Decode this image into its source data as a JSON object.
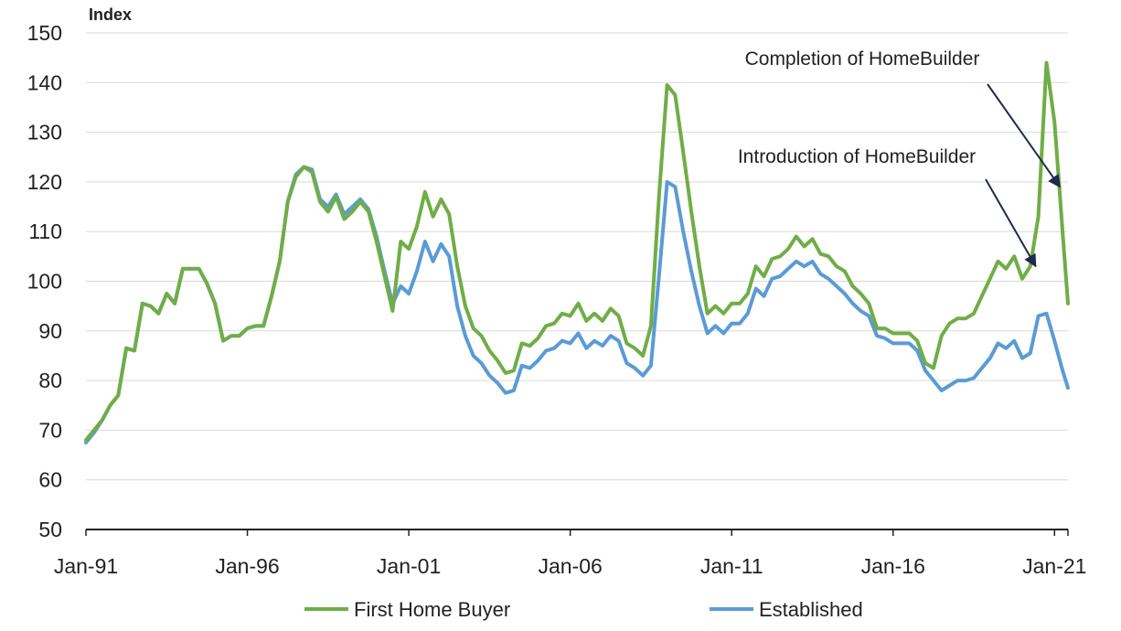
{
  "chart_data": {
    "type": "line",
    "ylabel": "Index",
    "ylim": [
      50,
      150
    ],
    "y_ticks": [
      50,
      60,
      70,
      80,
      90,
      100,
      110,
      120,
      130,
      140,
      150
    ],
    "x_tick_labels": [
      "Jan-91",
      "Jan-96",
      "Jan-01",
      "Jan-06",
      "Jan-11",
      "Jan-16",
      "Jan-21"
    ],
    "x_start": "1991-01",
    "x_end": "2021-06",
    "grid": true,
    "legend_position": "bottom",
    "series": [
      {
        "name": "First Home Buyer",
        "color": "#70ad47",
        "points": [
          [
            "1991-01",
            68
          ],
          [
            "1991-04",
            70
          ],
          [
            "1991-07",
            72
          ],
          [
            "1991-10",
            75
          ],
          [
            "1992-01",
            77
          ],
          [
            "1992-04",
            86.5
          ],
          [
            "1992-07",
            86
          ],
          [
            "1992-10",
            95.5
          ],
          [
            "1993-01",
            95
          ],
          [
            "1993-04",
            93.5
          ],
          [
            "1993-07",
            97.5
          ],
          [
            "1993-10",
            95.5
          ],
          [
            "1994-01",
            102.5
          ],
          [
            "1994-04",
            102.5
          ],
          [
            "1994-07",
            102.5
          ],
          [
            "1994-10",
            99.5
          ],
          [
            "1995-01",
            95.5
          ],
          [
            "1995-04",
            88
          ],
          [
            "1995-07",
            89
          ],
          [
            "1995-10",
            89
          ],
          [
            "1996-01",
            90.5
          ],
          [
            "1996-04",
            91
          ],
          [
            "1996-07",
            91
          ],
          [
            "1996-10",
            97
          ],
          [
            "1997-01",
            104
          ],
          [
            "1997-04",
            116
          ],
          [
            "1997-07",
            121
          ],
          [
            "1997-10",
            123
          ],
          [
            "1998-01",
            122
          ],
          [
            "1998-04",
            116
          ],
          [
            "1998-07",
            114
          ],
          [
            "1998-10",
            117
          ],
          [
            "1999-01",
            112.5
          ],
          [
            "1999-04",
            114
          ],
          [
            "1999-07",
            116
          ],
          [
            "1999-10",
            114
          ],
          [
            "2000-01",
            108
          ],
          [
            "2000-04",
            101
          ],
          [
            "2000-07",
            94
          ],
          [
            "2000-10",
            108
          ],
          [
            "2001-01",
            106.5
          ],
          [
            "2001-04",
            111
          ],
          [
            "2001-07",
            118
          ],
          [
            "2001-10",
            113
          ],
          [
            "2002-01",
            116.5
          ],
          [
            "2002-04",
            113.5
          ],
          [
            "2002-07",
            103
          ],
          [
            "2002-10",
            95
          ],
          [
            "2003-01",
            90.5
          ],
          [
            "2003-04",
            89
          ],
          [
            "2003-07",
            86
          ],
          [
            "2003-10",
            84
          ],
          [
            "2004-01",
            81.5
          ],
          [
            "2004-04",
            82
          ],
          [
            "2004-07",
            87.5
          ],
          [
            "2004-10",
            87
          ],
          [
            "2005-01",
            88.5
          ],
          [
            "2005-04",
            91
          ],
          [
            "2005-07",
            91.5
          ],
          [
            "2005-10",
            93.5
          ],
          [
            "2006-01",
            93
          ],
          [
            "2006-04",
            95.5
          ],
          [
            "2006-07",
            92
          ],
          [
            "2006-10",
            93.5
          ],
          [
            "2007-01",
            92
          ],
          [
            "2007-04",
            94.5
          ],
          [
            "2007-07",
            93
          ],
          [
            "2007-10",
            87.5
          ],
          [
            "2008-01",
            86.5
          ],
          [
            "2008-04",
            85
          ],
          [
            "2008-07",
            91
          ],
          [
            "2008-10",
            117
          ],
          [
            "2009-01",
            139.5
          ],
          [
            "2009-04",
            137.5
          ],
          [
            "2009-07",
            126
          ],
          [
            "2009-10",
            114
          ],
          [
            "2010-01",
            103
          ],
          [
            "2010-04",
            93.5
          ],
          [
            "2010-07",
            95
          ],
          [
            "2010-10",
            93.5
          ],
          [
            "2011-01",
            95.5
          ],
          [
            "2011-04",
            95.5
          ],
          [
            "2011-07",
            97.5
          ],
          [
            "2011-10",
            103
          ],
          [
            "2012-01",
            101
          ],
          [
            "2012-04",
            104.5
          ],
          [
            "2012-07",
            105
          ],
          [
            "2012-10",
            106.5
          ],
          [
            "2013-01",
            109
          ],
          [
            "2013-04",
            107
          ],
          [
            "2013-07",
            108.5
          ],
          [
            "2013-10",
            105.5
          ],
          [
            "2014-01",
            105
          ],
          [
            "2014-04",
            103
          ],
          [
            "2014-07",
            102
          ],
          [
            "2014-10",
            99
          ],
          [
            "2015-01",
            97.5
          ],
          [
            "2015-04",
            95.5
          ],
          [
            "2015-07",
            90.5
          ],
          [
            "2015-10",
            90.5
          ],
          [
            "2016-01",
            89.5
          ],
          [
            "2016-04",
            89.5
          ],
          [
            "2016-07",
            89.5
          ],
          [
            "2016-10",
            88
          ],
          [
            "2017-01",
            83.5
          ],
          [
            "2017-04",
            82.5
          ],
          [
            "2017-07",
            89
          ],
          [
            "2017-10",
            91.5
          ],
          [
            "2018-01",
            92.5
          ],
          [
            "2018-04",
            92.5
          ],
          [
            "2018-07",
            93.5
          ],
          [
            "2018-10",
            97
          ],
          [
            "2019-01",
            100.5
          ],
          [
            "2019-04",
            104
          ],
          [
            "2019-07",
            102.5
          ],
          [
            "2019-10",
            105
          ],
          [
            "2020-01",
            100.5
          ],
          [
            "2020-04",
            103
          ],
          [
            "2020-07",
            113
          ],
          [
            "2020-10",
            144
          ],
          [
            "2021-01",
            132
          ],
          [
            "2021-04",
            110
          ],
          [
            "2021-06",
            95.5
          ]
        ]
      },
      {
        "name": "Established",
        "color": "#5b9bd5",
        "points": [
          [
            "1991-01",
            67.5
          ],
          [
            "1991-04",
            69.5
          ],
          [
            "1991-07",
            72
          ],
          [
            "1991-10",
            75
          ],
          [
            "1992-01",
            77
          ],
          [
            "1992-04",
            86.5
          ],
          [
            "1992-07",
            86
          ],
          [
            "1992-10",
            95.5
          ],
          [
            "1993-01",
            95
          ],
          [
            "1993-04",
            93.5
          ],
          [
            "1993-07",
            97.5
          ],
          [
            "1993-10",
            95.5
          ],
          [
            "1994-01",
            102.5
          ],
          [
            "1994-04",
            102.5
          ],
          [
            "1994-07",
            102.5
          ],
          [
            "1994-10",
            99.5
          ],
          [
            "1995-01",
            95.5
          ],
          [
            "1995-04",
            88
          ],
          [
            "1995-07",
            89
          ],
          [
            "1995-10",
            89
          ],
          [
            "1996-01",
            90.5
          ],
          [
            "1996-04",
            91
          ],
          [
            "1996-07",
            91
          ],
          [
            "1996-10",
            97
          ],
          [
            "1997-01",
            104
          ],
          [
            "1997-04",
            116
          ],
          [
            "1997-07",
            121.5
          ],
          [
            "1997-10",
            123
          ],
          [
            "1998-01",
            122.5
          ],
          [
            "1998-04",
            116.5
          ],
          [
            "1998-07",
            115
          ],
          [
            "1998-10",
            117.5
          ],
          [
            "1999-01",
            113.5
          ],
          [
            "1999-04",
            115
          ],
          [
            "1999-07",
            116.5
          ],
          [
            "1999-10",
            114.5
          ],
          [
            "2000-01",
            109
          ],
          [
            "2000-04",
            102
          ],
          [
            "2000-07",
            95.5
          ],
          [
            "2000-10",
            99
          ],
          [
            "2001-01",
            97.5
          ],
          [
            "2001-04",
            102
          ],
          [
            "2001-07",
            108
          ],
          [
            "2001-10",
            104
          ],
          [
            "2002-01",
            107.5
          ],
          [
            "2002-04",
            105
          ],
          [
            "2002-07",
            95
          ],
          [
            "2002-10",
            89
          ],
          [
            "2003-01",
            85
          ],
          [
            "2003-04",
            83.5
          ],
          [
            "2003-07",
            81
          ],
          [
            "2003-10",
            79.5
          ],
          [
            "2004-01",
            77.5
          ],
          [
            "2004-04",
            78
          ],
          [
            "2004-07",
            83
          ],
          [
            "2004-10",
            82.5
          ],
          [
            "2005-01",
            84
          ],
          [
            "2005-04",
            86
          ],
          [
            "2005-07",
            86.5
          ],
          [
            "2005-10",
            88
          ],
          [
            "2006-01",
            87.5
          ],
          [
            "2006-04",
            89.5
          ],
          [
            "2006-07",
            86.5
          ],
          [
            "2006-10",
            88
          ],
          [
            "2007-01",
            87
          ],
          [
            "2007-04",
            89
          ],
          [
            "2007-07",
            88
          ],
          [
            "2007-10",
            83.5
          ],
          [
            "2008-01",
            82.5
          ],
          [
            "2008-04",
            81
          ],
          [
            "2008-07",
            83
          ],
          [
            "2008-10",
            101
          ],
          [
            "2009-01",
            120
          ],
          [
            "2009-04",
            119
          ],
          [
            "2009-07",
            110
          ],
          [
            "2009-10",
            102
          ],
          [
            "2010-01",
            95
          ],
          [
            "2010-04",
            89.5
          ],
          [
            "2010-07",
            91
          ],
          [
            "2010-10",
            89.5
          ],
          [
            "2011-01",
            91.5
          ],
          [
            "2011-04",
            91.5
          ],
          [
            "2011-07",
            93.5
          ],
          [
            "2011-10",
            98.5
          ],
          [
            "2012-01",
            97
          ],
          [
            "2012-04",
            100.5
          ],
          [
            "2012-07",
            101
          ],
          [
            "2012-10",
            102.5
          ],
          [
            "2013-01",
            104
          ],
          [
            "2013-04",
            103
          ],
          [
            "2013-07",
            104
          ],
          [
            "2013-10",
            101.5
          ],
          [
            "2014-01",
            100.5
          ],
          [
            "2014-04",
            99
          ],
          [
            "2014-07",
            97.5
          ],
          [
            "2014-10",
            95.5
          ],
          [
            "2015-01",
            94
          ],
          [
            "2015-04",
            93
          ],
          [
            "2015-07",
            89
          ],
          [
            "2015-10",
            88.5
          ],
          [
            "2016-01",
            87.5
          ],
          [
            "2016-04",
            87.5
          ],
          [
            "2016-07",
            87.5
          ],
          [
            "2016-10",
            86
          ],
          [
            "2017-01",
            82
          ],
          [
            "2017-04",
            80
          ],
          [
            "2017-07",
            78
          ],
          [
            "2017-10",
            79
          ],
          [
            "2018-01",
            80
          ],
          [
            "2018-04",
            80
          ],
          [
            "2018-07",
            80.5
          ],
          [
            "2018-10",
            82.5
          ],
          [
            "2019-01",
            84.5
          ],
          [
            "2019-04",
            87.5
          ],
          [
            "2019-07",
            86.5
          ],
          [
            "2019-10",
            88
          ],
          [
            "2020-01",
            84.5
          ],
          [
            "2020-04",
            85.5
          ],
          [
            "2020-07",
            93
          ],
          [
            "2020-10",
            93.5
          ],
          [
            "2021-01",
            88
          ],
          [
            "2021-04",
            82
          ],
          [
            "2021-06",
            78.5
          ]
        ]
      }
    ],
    "annotations": [
      {
        "text": "Completion of HomeBuilder",
        "target": [
          "2021-03",
          119
        ]
      },
      {
        "text": "Introduction of HomeBuilder",
        "target": [
          "2020-06",
          103
        ]
      }
    ],
    "arrow_color": "#1f2a4d"
  }
}
